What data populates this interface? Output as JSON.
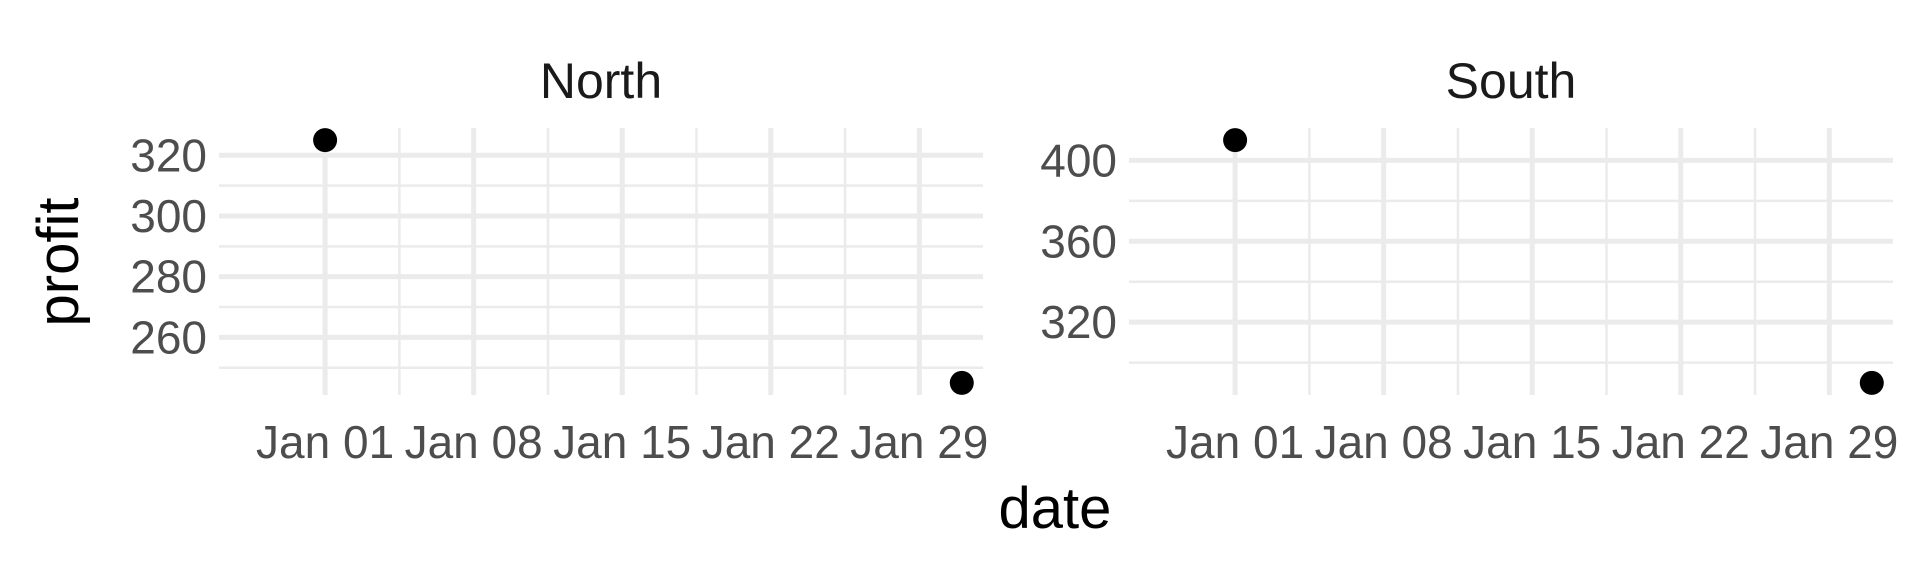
{
  "chart_data": {
    "type": "scatter",
    "xlabel": "date",
    "ylabel": "profit",
    "panels": [
      {
        "name": "North",
        "x": [
          "2024-01-01",
          "2024-01-31"
        ],
        "y": [
          325,
          245
        ],
        "xlim": [
          "2023-12-27",
          "2024-02-01"
        ],
        "ylim": [
          241,
          329
        ],
        "xticks": [
          "Jan 01",
          "Jan 08",
          "Jan 15",
          "Jan 22",
          "Jan 29"
        ],
        "yticks": [
          260,
          280,
          300,
          320
        ]
      },
      {
        "name": "South",
        "x": [
          "2024-01-01",
          "2024-01-31"
        ],
        "y": [
          410,
          290
        ],
        "xlim": [
          "2023-12-27",
          "2024-02-01"
        ],
        "ylim": [
          284,
          416
        ],
        "xticks": [
          "Jan 01",
          "Jan 08",
          "Jan 15",
          "Jan 22",
          "Jan 29"
        ],
        "yticks": [
          320,
          360,
          400
        ]
      }
    ],
    "grid": true,
    "legend": "none"
  }
}
